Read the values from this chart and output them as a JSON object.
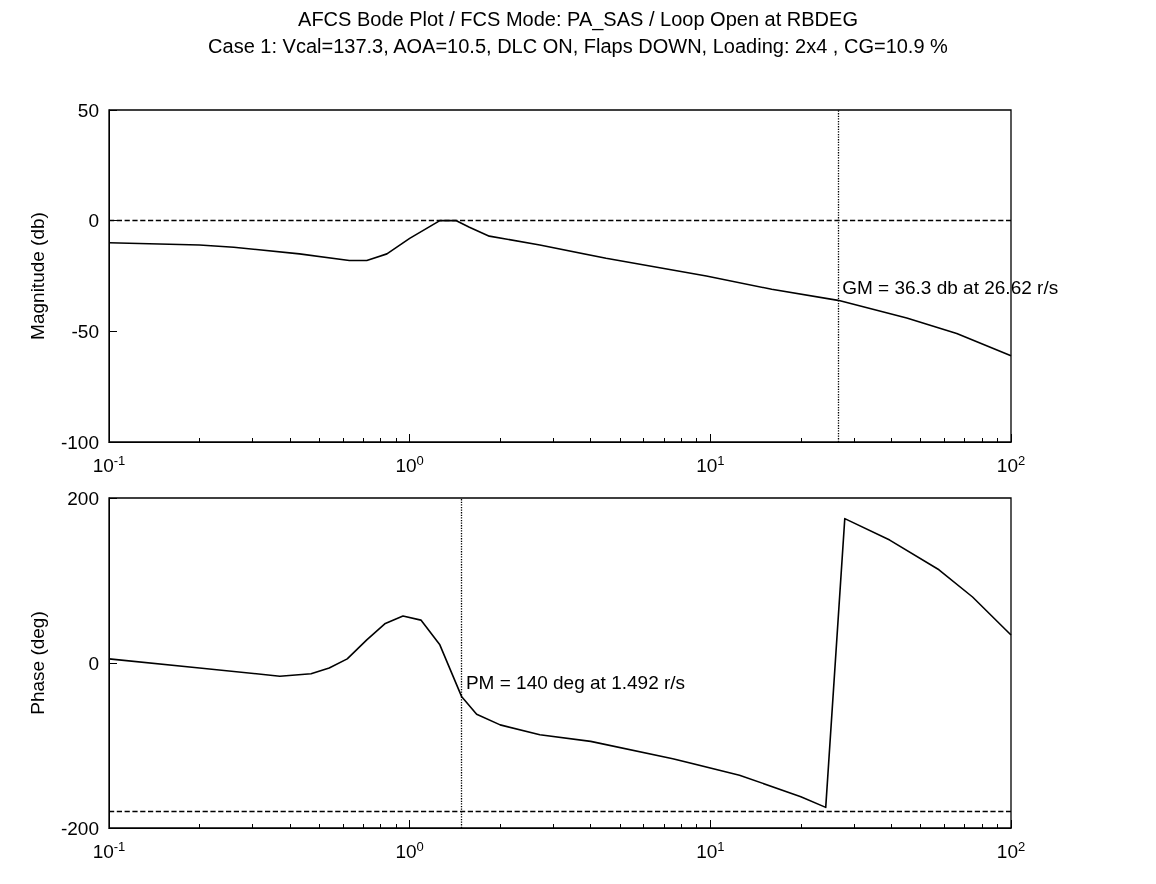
{
  "chart_data": [
    {
      "type": "line",
      "title": "AFCS Bode Plot / FCS Mode: PA_SAS / Loop Open at  RBDEG",
      "subtitle": "Case 1: Vcal=137.3, AOA=10.5,  DLC ON, Flaps DOWN, Loading:  2x4 , CG=10.9 %",
      "ylabel": "Magnitude (db)",
      "log": "x",
      "xlim": [
        0.1,
        100
      ],
      "xticks": [
        {
          "value": 0.1,
          "label": "10$^{-1}$"
        },
        {
          "value": 1,
          "label": "10$^{0}$"
        },
        {
          "value": 10,
          "label": "10$^{1}$"
        },
        {
          "value": 100,
          "label": "10$^{2}$"
        }
      ],
      "ylim": [
        -100,
        50
      ],
      "yticks": [
        -100,
        -50,
        0,
        50
      ],
      "grid": false,
      "marker": "none",
      "line_style": "solid",
      "series": [
        {
          "color": "#000000",
          "x": [
            0.1,
            0.2,
            0.26,
            0.43,
            0.63,
            0.72,
            0.84,
            1.0,
            1.26,
            1.43,
            1.58,
            1.84,
            2.71,
            4.5,
            9.7,
            16,
            26.6,
            45,
            66,
            100
          ],
          "values": [
            -10,
            -11,
            -12,
            -15,
            -18,
            -18,
            -15,
            -8,
            0,
            0,
            -3,
            -7,
            -11,
            -17,
            -25,
            -31,
            -36,
            -44,
            -51,
            -61
          ]
        }
      ],
      "ref_lines": [
        {
          "axis": "y",
          "value": 0,
          "color": "#000000",
          "line_style": "dashed"
        },
        {
          "axis": "x",
          "value": 26.62,
          "color": "#000000",
          "line_style": "dotted"
        }
      ],
      "annotations": [
        {
          "text": "GM = 36.3 db at 26.62 r/s",
          "x": 26.62,
          "y": -36.3
        }
      ]
    },
    {
      "type": "line",
      "ylabel": "Phase (deg)",
      "log": "x",
      "xlim": [
        0.1,
        100
      ],
      "xticks": [
        {
          "value": 0.1,
          "label": "10$^{-1}$"
        },
        {
          "value": 1,
          "label": "10$^{0}$"
        },
        {
          "value": 10,
          "label": "10$^{1}$"
        },
        {
          "value": 100,
          "label": "10$^{2}$"
        }
      ],
      "ylim": [
        -200,
        200
      ],
      "yticks": [
        -200,
        0,
        200
      ],
      "grid": false,
      "marker": "none",
      "line_style": "solid",
      "series": [
        {
          "color": "#000000",
          "x": [
            0.1,
            0.2,
            0.37,
            0.47,
            0.54,
            0.62,
            0.72,
            0.83,
            0.95,
            1.09,
            1.26,
            1.49,
            1.67,
            2.0,
            2.71,
            4.0,
            7.5,
            12.5,
            20,
            24.2,
            28,
            39.5,
            57.6,
            74.5,
            100
          ],
          "values": [
            5,
            -6,
            -16,
            -13,
            -6,
            5,
            28,
            48,
            57,
            52,
            22,
            -41,
            -62,
            -75,
            -87,
            -95,
            -116,
            -136,
            -162,
            -175,
            175,
            149,
            113,
            80,
            34
          ]
        }
      ],
      "ref_lines": [
        {
          "axis": "y",
          "value": -180,
          "color": "#000000",
          "line_style": "dashed"
        },
        {
          "axis": "x",
          "value": 1.492,
          "color": "#000000",
          "line_style": "dotted"
        }
      ],
      "annotations": [
        {
          "text": "PM = 140 deg at 1.492 r/s",
          "x": 1.492,
          "y": -40
        }
      ]
    }
  ]
}
